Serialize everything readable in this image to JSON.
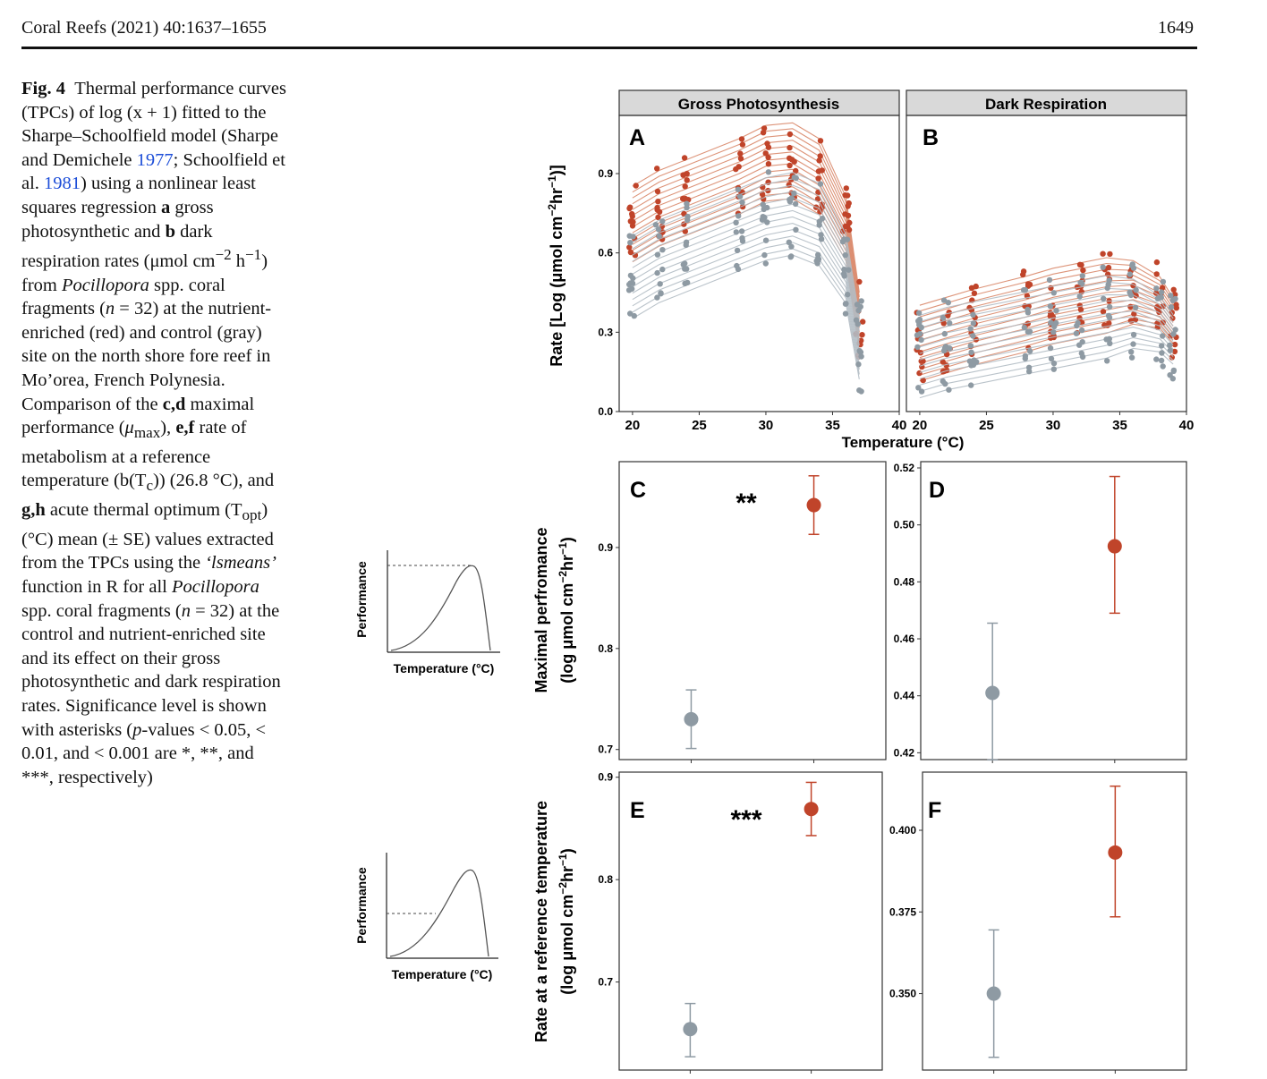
{
  "header": {
    "journal": "Coral Reefs (2021) 40:1637–1655",
    "page": "1649"
  },
  "caption": {
    "fig_label": "Fig. 4",
    "p1": "Thermal performance curves (TPCs) of log (x + 1) fitted to the Sharpe–Schoolfield model (Sharpe and Demichele ",
    "ref1": "1977",
    "p2": "; Schoolfield et al. ",
    "ref2": "1981",
    "p3": ") using a nonlinear least squares regression ",
    "a": "a",
    "p4": " gross photosynthetic and ",
    "b": "b",
    "p5": " dark respiration rates (μmol cm",
    "sup1": "−2",
    "p6": " h",
    "sup2": "−1",
    "p7": ") from ",
    "genus1": "Pocillopora",
    "p8": " spp. coral fragments (",
    "n1": "n",
    "p9": " = 32) at the nutrient-enriched (red) and control (gray) site on the north shore fore reef in Mo’orea, French Polynesia. Comparison of the ",
    "cd": "c,d",
    "p10": " maximal performance (",
    "mu": "μ",
    "mu_sub": "max",
    "p11": "), ",
    "ef": "e,f",
    "p12": " rate of metabolism at a reference temperature (b(T",
    "tc_sub": "c",
    "p13": ")) (26.8 °C), and ",
    "gh": "g,h",
    "p14": " acute thermal optimum (T",
    "opt_sub": "opt",
    "p15": ") (°C) mean (± SE) values extracted from the TPCs using the ",
    "lsmeans": "‘lsmeans’",
    "p16": " function in R for all ",
    "genus2": "Pocillopora",
    "p17": " spp. coral fragments (",
    "n2": "n",
    "p18": " = 32) at the control and nutrient-enriched site and its effect on their gross photosynthetic and dark respiration rates. Significance level is shown with asterisks (",
    "p_it": "p",
    "p19": "-values < 0.05, < 0.01, and < 0.001 are *, **, and ***, respectively)"
  },
  "colors": {
    "enriched": "#c0442a",
    "control": "#8e9aa3",
    "enriched_line": "#d9886a",
    "control_line": "#b3bcc4",
    "strip": "#d9d9d9"
  },
  "chart_data": [
    {
      "id": "A",
      "type": "scatter",
      "strip_title": "Gross Photosynthesis",
      "panel_label": "A",
      "xlabel": "Temperature (°C)",
      "ylabel": "Rate [Log (μmol cm−2hr−1)]",
      "xlim": [
        19,
        40
      ],
      "ylim": [
        0.0,
        1.12
      ],
      "xticks": [
        "20",
        "25",
        "30",
        "35",
        "40"
      ],
      "yticks": [
        "0.0",
        "0.3",
        "0.6",
        "0.9"
      ],
      "series": [
        {
          "name": "enriched",
          "temps": [
            20,
            22,
            24,
            28,
            30,
            32,
            34,
            36,
            37
          ],
          "values": [
            0.72,
            0.78,
            0.82,
            0.9,
            0.95,
            0.96,
            0.9,
            0.7,
            0.35
          ]
        },
        {
          "name": "control",
          "temps": [
            20,
            22,
            24,
            28,
            30,
            32,
            34,
            36,
            37
          ],
          "values": [
            0.52,
            0.58,
            0.62,
            0.7,
            0.74,
            0.76,
            0.72,
            0.55,
            0.25
          ]
        }
      ]
    },
    {
      "id": "B",
      "type": "scatter",
      "strip_title": "Dark Respiration",
      "panel_label": "B",
      "xlim": [
        19,
        40
      ],
      "ylim": [
        0.0,
        1.12
      ],
      "xticks": [
        "20",
        "25",
        "30",
        "35",
        "40"
      ],
      "series": [
        {
          "name": "enriched",
          "temps": [
            20,
            22,
            24,
            28,
            30,
            32,
            34,
            36,
            38,
            39
          ],
          "values": [
            0.27,
            0.3,
            0.33,
            0.38,
            0.41,
            0.43,
            0.45,
            0.46,
            0.42,
            0.35
          ]
        },
        {
          "name": "control",
          "temps": [
            20,
            22,
            24,
            28,
            30,
            32,
            34,
            36,
            38,
            39
          ],
          "values": [
            0.22,
            0.25,
            0.27,
            0.31,
            0.33,
            0.35,
            0.37,
            0.38,
            0.34,
            0.28
          ]
        }
      ]
    },
    {
      "id": "C",
      "type": "scatter",
      "panel_label": "C",
      "significance": "**",
      "ylabel_line1": "Maximal perfromance",
      "ylabel_line2": "(log μmol cm−2hr−1)",
      "ylim": [
        0.69,
        0.985
      ],
      "yticks": [
        0.7,
        0.8,
        0.9
      ],
      "ytick_labels": [
        "0.7",
        "0.8",
        "0.9"
      ],
      "points": [
        {
          "group": "control",
          "mean": 0.73,
          "lo": 0.701,
          "hi": 0.759
        },
        {
          "group": "enriched",
          "mean": 0.942,
          "lo": 0.913,
          "hi": 0.971
        }
      ]
    },
    {
      "id": "D",
      "type": "scatter",
      "panel_label": "D",
      "ylim": [
        0.4176,
        0.5222
      ],
      "yticks": [
        0.42,
        0.44,
        0.46,
        0.48,
        0.5,
        0.52
      ],
      "ytick_labels": [
        "0.42",
        "0.44",
        "0.46",
        "0.48",
        "0.50",
        "0.52"
      ],
      "points": [
        {
          "group": "control",
          "mean": 0.441,
          "lo": 0.4175,
          "hi": 0.4655
        },
        {
          "group": "enriched",
          "mean": 0.4925,
          "lo": 0.469,
          "hi": 0.517
        }
      ]
    },
    {
      "id": "E",
      "type": "scatter",
      "panel_label": "E",
      "significance": "***",
      "ylabel_line1": "Rate at a reference temperature",
      "ylabel_line2": "(log μmol cm−2hr−1)",
      "ylim": [
        0.614,
        0.905
      ],
      "yticks": [
        0.7,
        0.8,
        0.9
      ],
      "ytick_labels": [
        "0.7",
        "0.8",
        "0.9"
      ],
      "points": [
        {
          "group": "control",
          "mean": 0.654,
          "lo": 0.627,
          "hi": 0.679
        },
        {
          "group": "enriched",
          "mean": 0.869,
          "lo": 0.843,
          "hi": 0.895
        }
      ]
    },
    {
      "id": "F",
      "type": "scatter",
      "panel_label": "F",
      "ylim": [
        0.3266,
        0.4178
      ],
      "yticks": [
        0.35,
        0.375,
        0.4
      ],
      "ytick_labels": [
        "0.350",
        "0.375",
        "0.400"
      ],
      "points": [
        {
          "group": "control",
          "mean": 0.35,
          "lo": 0.3305,
          "hi": 0.3695
        },
        {
          "group": "enriched",
          "mean": 0.3932,
          "lo": 0.3735,
          "hi": 0.4135
        }
      ]
    }
  ],
  "insets": [
    {
      "xlabel": "Temperature (°C)",
      "ylabel": "Performance",
      "dashed": "peak"
    },
    {
      "xlabel": "Temperature (°C)",
      "ylabel": "Performance",
      "dashed": "reference"
    }
  ]
}
